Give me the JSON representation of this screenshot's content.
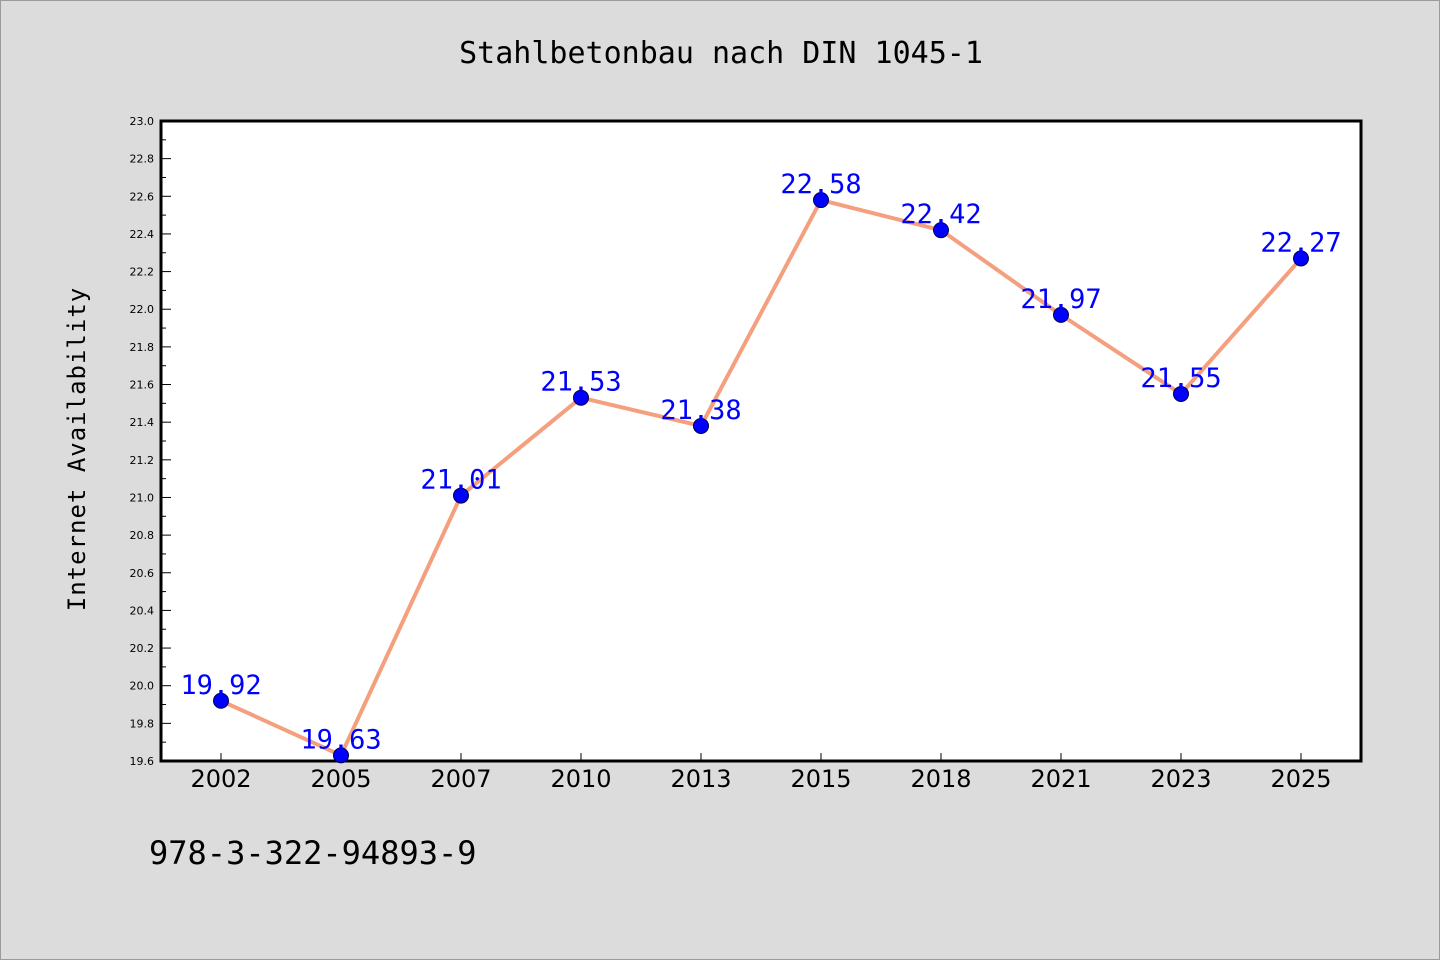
{
  "footer": {
    "isbn": "978-3-322-94893-9"
  },
  "colors": {
    "background": "#dcdcdc",
    "plot_background": "#ffffff",
    "line": "#f4a07e",
    "marker": "#0000ff",
    "data_label": "#0000ff"
  },
  "chart_data": {
    "type": "line",
    "title": "Stahlbetonbau nach DIN 1045-1",
    "xlabel": "",
    "ylabel": "Internet Availability",
    "categories": [
      "2002",
      "2005",
      "2007",
      "2010",
      "2013",
      "2015",
      "2018",
      "2021",
      "2023",
      "2025"
    ],
    "series": [
      {
        "values": [
          19.92,
          19.63,
          21.01,
          21.53,
          21.38,
          22.58,
          22.42,
          21.97,
          21.55,
          22.27
        ]
      }
    ],
    "data_labels": [
      "19.92",
      "19.63",
      "21.01",
      "21.53",
      "21.38",
      "22.58",
      "22.42",
      "21.97",
      "21.55",
      "22.27"
    ],
    "ylim": [
      19.6,
      23.0
    ],
    "yticks": [
      "19.6",
      "19.8",
      "20.0",
      "20.2",
      "20.4",
      "20.6",
      "20.8",
      "21.0",
      "21.2",
      "21.4",
      "21.6",
      "21.8",
      "22.0",
      "22.2",
      "22.4",
      "22.6",
      "22.8",
      "23.0"
    ],
    "grid": false,
    "legend": "none",
    "marker": "circle"
  }
}
